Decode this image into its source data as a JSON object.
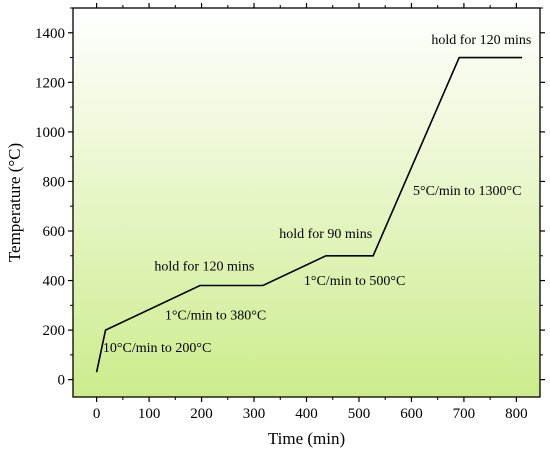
{
  "chart_data": {
    "type": "line",
    "xlabel": "Time (min)",
    "ylabel": "Temperature (°C)",
    "xlim": [
      -45,
      845
    ],
    "ylim": [
      -70,
      1500
    ],
    "xticks": [
      0,
      100,
      200,
      300,
      400,
      500,
      600,
      700,
      800
    ],
    "yticks": [
      0,
      200,
      400,
      600,
      800,
      1000,
      1200,
      1400
    ],
    "xtick_labels": [
      "0",
      "100",
      "200",
      "300",
      "400",
      "500",
      "600",
      "700",
      "800"
    ],
    "ytick_labels": [
      "0",
      "200",
      "400",
      "600",
      "800",
      "1000",
      "1200",
      "1400"
    ],
    "grid": false,
    "background": {
      "top_color": "#ffffff",
      "bottom_color": "#ccec8c"
    },
    "line_color": "#000000",
    "series": [
      {
        "x": [
          0,
          17,
          197,
          317,
          437,
          527,
          691,
          811
        ],
        "y": [
          30,
          200,
          380,
          380,
          500,
          500,
          1300,
          1300
        ]
      }
    ],
    "annotations": [
      {
        "text": "10°C/min to 200°C",
        "x": 12,
        "y": 112
      },
      {
        "text": "1°C/min to 380°C",
        "x": 130,
        "y": 243
      },
      {
        "text": "hold for 120 mins",
        "x": 110,
        "y": 440
      },
      {
        "text": "hold for 90 mins",
        "x": 348,
        "y": 572
      },
      {
        "text": "1°C/min to 500°C",
        "x": 395,
        "y": 382
      },
      {
        "text": "5°C/min to 1300°C",
        "x": 603,
        "y": 745
      },
      {
        "text": "hold for 120 mins",
        "x": 638,
        "y": 1355
      }
    ]
  }
}
